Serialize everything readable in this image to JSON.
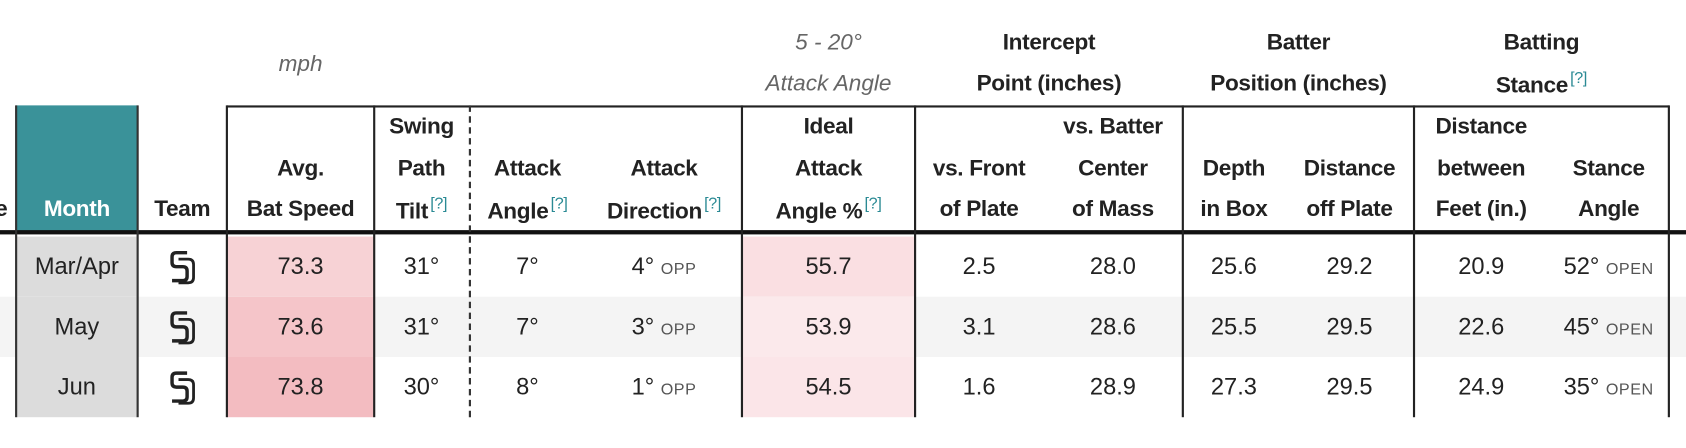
{
  "group_headers": [
    {
      "lines": [
        "mph"
      ]
    },
    {
      "lines": [
        "5 - 20°",
        "Attack Angle"
      ]
    },
    {
      "lines": [
        "Intercept",
        "Point (inches)"
      ]
    },
    {
      "lines": [
        "Batter",
        "Position (inches)"
      ]
    },
    {
      "lines": [
        "Batting",
        "Stance"
      ],
      "help": "[?]"
    }
  ],
  "table": {
    "cut_column_header": "e",
    "columns": [
      {
        "lines": [
          "Month"
        ]
      },
      {
        "lines": [
          "Team"
        ]
      },
      {
        "lines": [
          "Avg.",
          "Bat Speed"
        ]
      },
      {
        "lines": [
          "Swing",
          "Path",
          "Tilt"
        ],
        "help": "[?]"
      },
      {
        "lines": [
          "Attack",
          "Angle"
        ],
        "help": "[?]"
      },
      {
        "lines": [
          "Attack",
          "Direction"
        ],
        "help": "[?]"
      },
      {
        "lines": [
          "Ideal",
          "Attack",
          "Angle %"
        ],
        "help": "[?]"
      },
      {
        "lines": [
          "vs. Front",
          "of Plate"
        ]
      },
      {
        "lines": [
          "vs. Batter",
          "Center",
          "of Mass"
        ]
      },
      {
        "lines": [
          "Depth",
          "in Box"
        ]
      },
      {
        "lines": [
          "Distance",
          "off Plate"
        ]
      },
      {
        "lines": [
          "Distance",
          "between",
          "Feet (in.)"
        ]
      },
      {
        "lines": [
          "Stance",
          "Angle"
        ]
      }
    ],
    "rows": [
      {
        "month": "Mar/Apr",
        "cells": [
          {
            "text": "73.3"
          },
          {
            "text": "31°"
          },
          {
            "text": "7°"
          },
          {
            "text": "4°",
            "tag": "OPP"
          },
          {
            "text": "55.7"
          },
          {
            "text": "2.5"
          },
          {
            "text": "28.0"
          },
          {
            "text": "25.6"
          },
          {
            "text": "29.2"
          },
          {
            "text": "20.9"
          },
          {
            "text": "52°",
            "tag": "OPEN"
          }
        ]
      },
      {
        "month": "May",
        "cells": [
          {
            "text": "73.6"
          },
          {
            "text": "31°"
          },
          {
            "text": "7°"
          },
          {
            "text": "3°",
            "tag": "OPP"
          },
          {
            "text": "53.9"
          },
          {
            "text": "3.1"
          },
          {
            "text": "28.6"
          },
          {
            "text": "25.5"
          },
          {
            "text": "29.5"
          },
          {
            "text": "22.6"
          },
          {
            "text": "45°",
            "tag": "OPEN"
          }
        ]
      },
      {
        "month": "Jun",
        "cells": [
          {
            "text": "73.8"
          },
          {
            "text": "30°"
          },
          {
            "text": "8°"
          },
          {
            "text": "1°",
            "tag": "OPP"
          },
          {
            "text": "54.5"
          },
          {
            "text": "1.6"
          },
          {
            "text": "28.9"
          },
          {
            "text": "27.3"
          },
          {
            "text": "29.5"
          },
          {
            "text": "24.9"
          },
          {
            "text": "35°",
            "tag": "OPEN"
          }
        ]
      }
    ]
  }
}
